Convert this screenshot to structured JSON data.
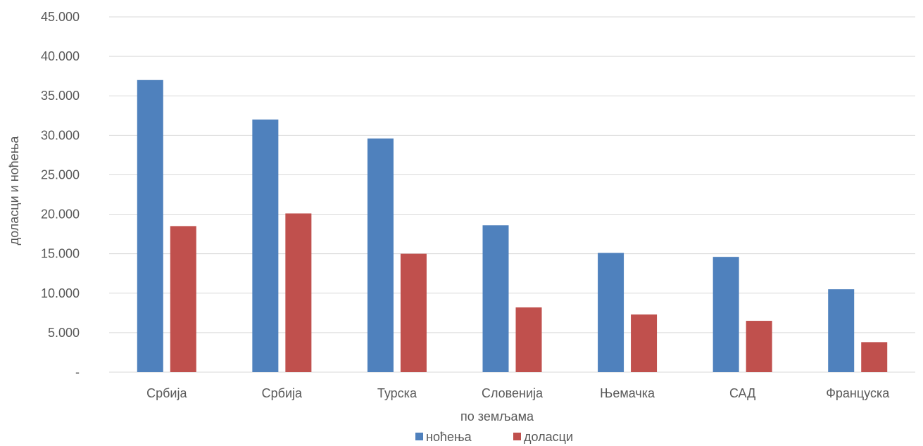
{
  "chart_data": {
    "type": "bar",
    "title": "",
    "xlabel": "по земљама",
    "ylabel": "доласци и ноћења",
    "categories": [
      "Србија",
      "Србија",
      "Турска",
      "Словенија",
      "Њемачка",
      "САД",
      "Француска"
    ],
    "series": [
      {
        "name": "ноћења",
        "color": "#4f81bd",
        "values": [
          37000,
          32000,
          29600,
          18600,
          15100,
          14600,
          10500
        ]
      },
      {
        "name": "доласци",
        "color": "#c0504d",
        "values": [
          18500,
          20100,
          15000,
          8200,
          7300,
          6500,
          3800
        ]
      }
    ],
    "ylim": [
      0,
      45000
    ],
    "yticks": [
      {
        "value": 0,
        "label": "-"
      },
      {
        "value": 5000,
        "label": "5.000"
      },
      {
        "value": 10000,
        "label": "10.000"
      },
      {
        "value": 15000,
        "label": "15.000"
      },
      {
        "value": 20000,
        "label": "20.000"
      },
      {
        "value": 25000,
        "label": "25.000"
      },
      {
        "value": 30000,
        "label": "30.000"
      },
      {
        "value": 35000,
        "label": "35.000"
      },
      {
        "value": 40000,
        "label": "40.000"
      },
      {
        "value": 45000,
        "label": "45.000"
      }
    ],
    "grid": true,
    "legend_position": "bottom"
  }
}
